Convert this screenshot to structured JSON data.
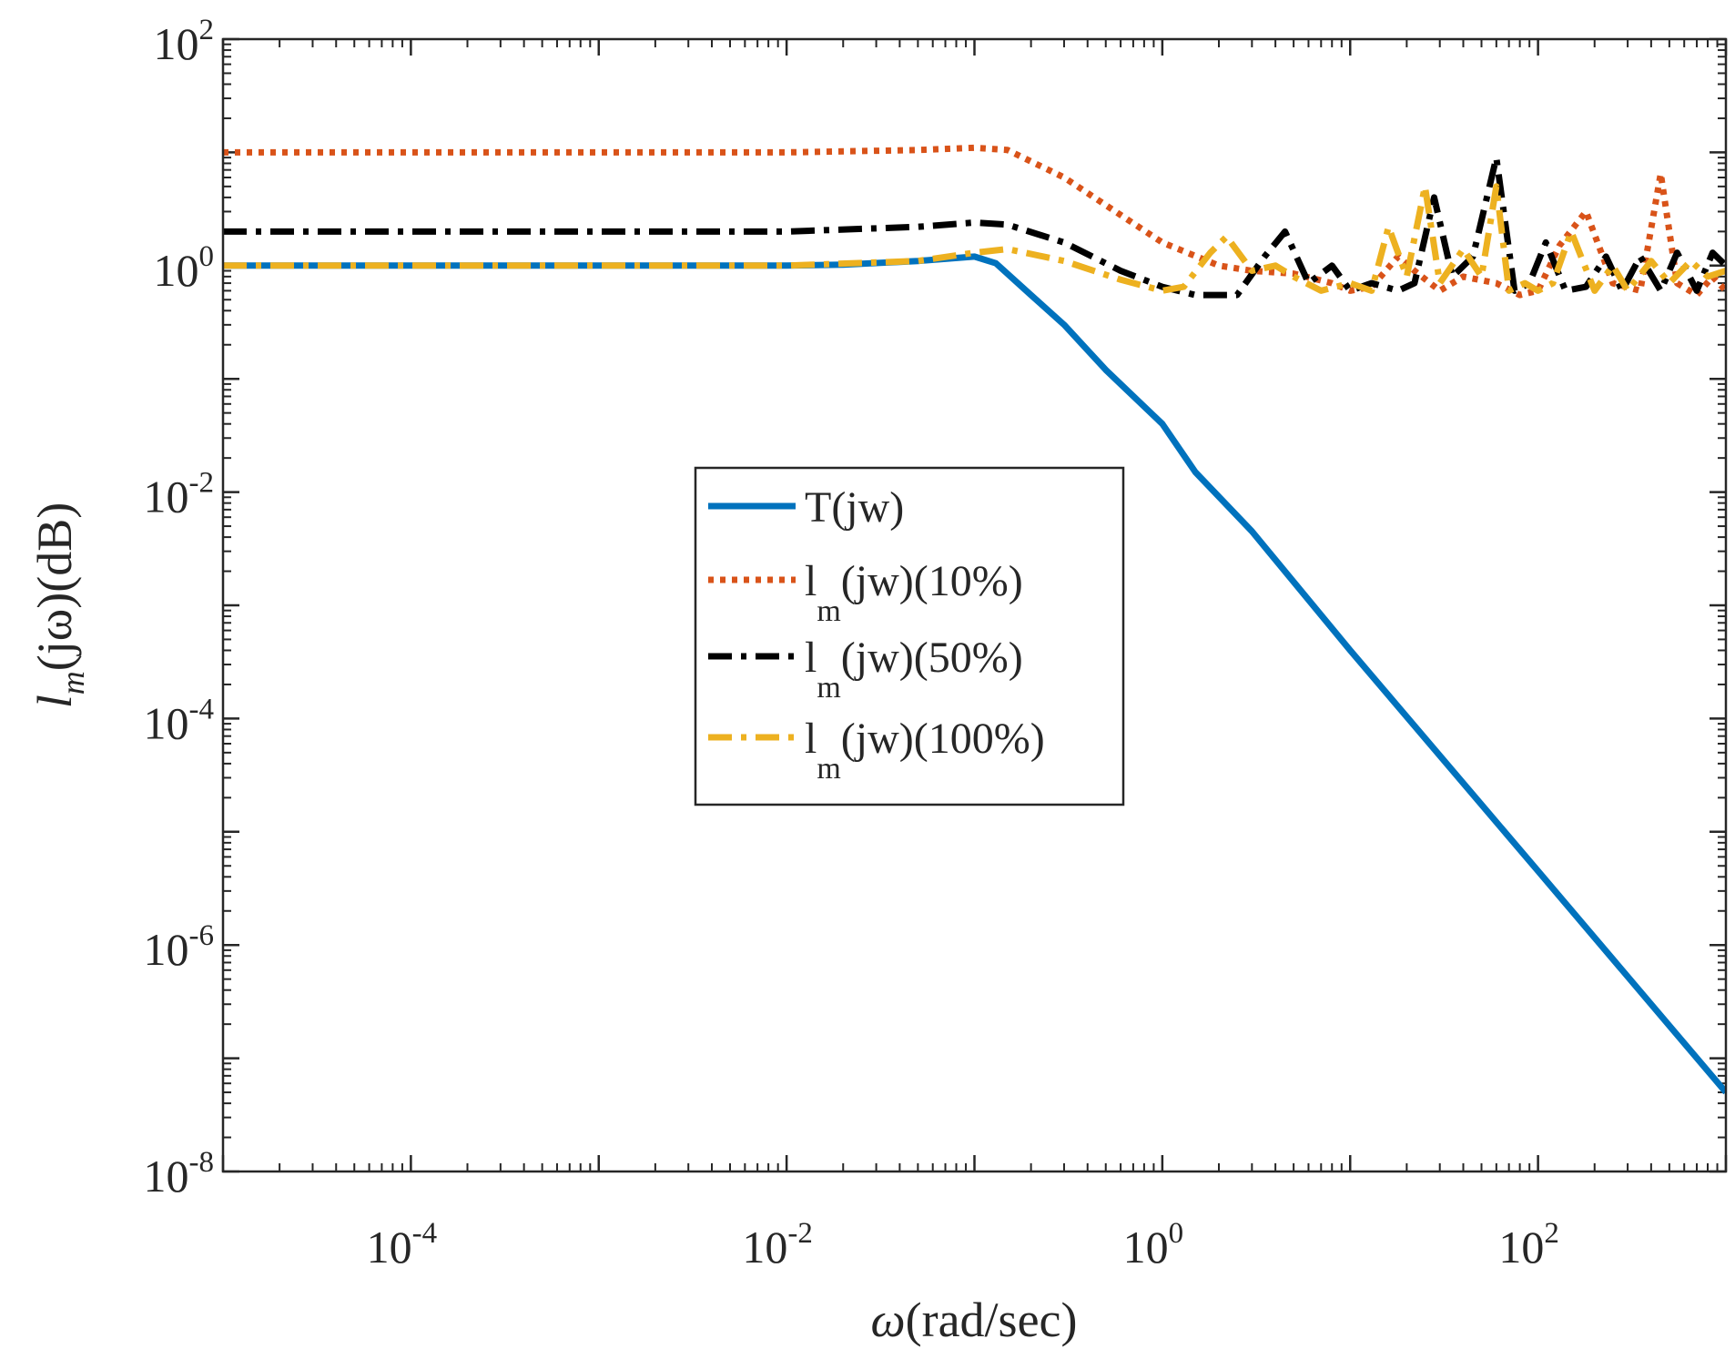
{
  "chart_data": {
    "type": "line",
    "title": "",
    "x_scale": "log",
    "y_scale": "log",
    "xlim": [
      1e-05,
      1000
    ],
    "ylim": [
      1e-08,
      100
    ],
    "xlabel": {
      "symbol": "ω",
      "text": "(rad/sec)"
    },
    "ylabel": {
      "symbol": "l",
      "sub": "m",
      "text": "(jω)(dB)"
    },
    "x_ticks": [
      {
        "value": 0.0001,
        "base": "10",
        "exp": "-4"
      },
      {
        "value": 0.01,
        "base": "10",
        "exp": "-2"
      },
      {
        "value": 1,
        "base": "10",
        "exp": "0"
      },
      {
        "value": 100,
        "base": "10",
        "exp": "2"
      }
    ],
    "y_ticks": [
      {
        "value": 100,
        "base": "10",
        "exp": "2"
      },
      {
        "value": 1,
        "base": "10",
        "exp": "0"
      },
      {
        "value": 0.01,
        "base": "10",
        "exp": "-2"
      },
      {
        "value": 0.0001,
        "base": "10",
        "exp": "-4"
      },
      {
        "value": 1e-06,
        "base": "10",
        "exp": "-6"
      },
      {
        "value": 1e-08,
        "base": "10",
        "exp": "-8"
      }
    ],
    "legend_position": "center",
    "series": [
      {
        "name": "T(jw)",
        "label_main": "T(jw)",
        "label_sub": "",
        "label_tail": "",
        "color": "#0072BD",
        "style": "solid",
        "x": [
          1e-05,
          0.001,
          0.01,
          0.02,
          0.05,
          0.1,
          0.13,
          0.2,
          0.3,
          0.5,
          1,
          1.5,
          3,
          10,
          100,
          1000
        ],
        "y": [
          1,
          1,
          1,
          1.02,
          1.1,
          1.2,
          1.05,
          0.55,
          0.3,
          0.12,
          0.04,
          0.015,
          0.0045,
          0.0004,
          4.5e-06,
          5e-08
        ]
      },
      {
        "name": "l_m(jw)(10%)",
        "label_main": "l",
        "label_sub": "m",
        "label_tail": "(jw)(10%)",
        "color": "#D95319",
        "style": "dotted",
        "x": [
          1e-05,
          0.001,
          0.01,
          0.05,
          0.1,
          0.15,
          0.3,
          0.6,
          1,
          2,
          3,
          5,
          8,
          10,
          13,
          18,
          22,
          30,
          40,
          60,
          80,
          100,
          130,
          180,
          250,
          350,
          450,
          550,
          700,
          850,
          1000
        ],
        "y": [
          10,
          10,
          10,
          10.5,
          11,
          10.5,
          6,
          2.8,
          1.6,
          1,
          0.9,
          0.85,
          0.7,
          0.6,
          0.65,
          1.2,
          0.9,
          0.6,
          0.8,
          0.7,
          0.55,
          0.6,
          1.5,
          3,
          0.7,
          0.6,
          6.5,
          0.7,
          0.55,
          0.8,
          0.6
        ]
      },
      {
        "name": "l_m(jw)(50%)",
        "label_main": "l",
        "label_sub": "m",
        "label_tail": "(jw)(50%)",
        "color": "#000000",
        "style": "dashdot",
        "x": [
          1e-05,
          0.001,
          0.01,
          0.05,
          0.1,
          0.15,
          0.3,
          0.6,
          1,
          1.5,
          2.5,
          3.5,
          4.5,
          6,
          8,
          10,
          13,
          18,
          22,
          28,
          35,
          45,
          60,
          75,
          90,
          110,
          140,
          180,
          230,
          280,
          350,
          450,
          550,
          700,
          850,
          1000
        ],
        "y": [
          2,
          2,
          2,
          2.2,
          2.4,
          2.3,
          1.6,
          0.9,
          0.65,
          0.55,
          0.55,
          1.2,
          2,
          0.7,
          1,
          0.6,
          0.7,
          0.6,
          0.7,
          4,
          0.8,
          1.2,
          9,
          0.6,
          0.7,
          1.6,
          0.6,
          0.65,
          1.2,
          0.6,
          1.2,
          0.6,
          1.3,
          0.6,
          1.3,
          1
        ]
      },
      {
        "name": "l_m(jw)(100%)",
        "label_main": "l",
        "label_sub": "m",
        "label_tail": "(jw)(100%)",
        "color": "#EDB120",
        "style": "dashdot",
        "x": [
          1e-05,
          0.001,
          0.01,
          0.05,
          0.1,
          0.15,
          0.3,
          0.6,
          1,
          1.3,
          1.8,
          2.2,
          3,
          4,
          5,
          7,
          10,
          13,
          16,
          20,
          25,
          30,
          40,
          50,
          60,
          70,
          85,
          100,
          120,
          150,
          200,
          250,
          300,
          400,
          500,
          650,
          800,
          1000
        ],
        "y": [
          1,
          1,
          1,
          1.1,
          1.3,
          1.4,
          1.1,
          0.75,
          0.6,
          0.65,
          1.3,
          1.8,
          0.9,
          1,
          0.8,
          0.6,
          0.7,
          0.6,
          2.2,
          0.8,
          5,
          0.7,
          1.4,
          0.8,
          5,
          0.6,
          0.7,
          0.6,
          0.7,
          2,
          0.6,
          1,
          0.6,
          1.1,
          0.7,
          1.1,
          0.8,
          0.9
        ]
      }
    ]
  }
}
